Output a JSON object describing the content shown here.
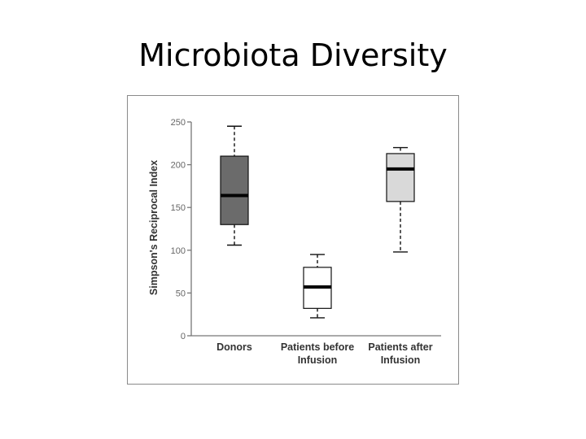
{
  "slide": {
    "title": "Microbiota Diversity"
  },
  "chart_data": {
    "type": "box",
    "ylabel": "Simpson's Reciprocal Index",
    "ylim": [
      0,
      250
    ],
    "yticks": [
      0,
      50,
      100,
      150,
      200,
      250
    ],
    "grid": false,
    "boxes": [
      {
        "category": [
          "Donors"
        ],
        "whisker_low": 106,
        "q1": 130,
        "median": 164,
        "q3": 210,
        "whisker_high": 245,
        "fill": "#6b6b6b"
      },
      {
        "category": [
          "Patients before",
          "Infusion"
        ],
        "whisker_low": 21,
        "q1": 32,
        "median": 57,
        "q3": 80,
        "whisker_high": 95,
        "fill": "#ffffff"
      },
      {
        "category": [
          "Patients after",
          "Infusion"
        ],
        "whisker_low": 98,
        "q1": 157,
        "median": 195,
        "q3": 213,
        "whisker_high": 220,
        "fill": "#d9d9d9"
      }
    ]
  }
}
